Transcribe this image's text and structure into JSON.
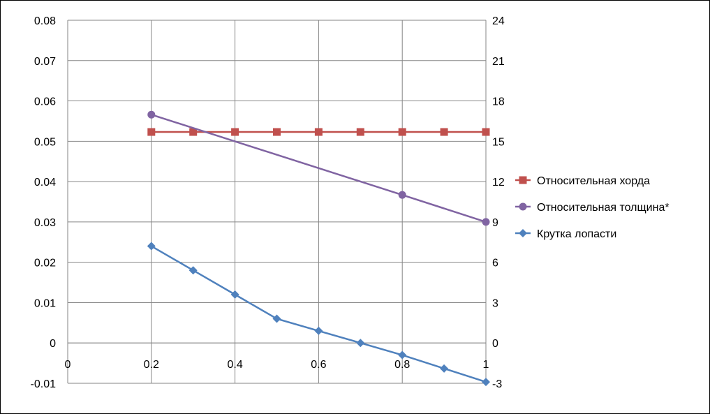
{
  "chart_data": {
    "type": "line",
    "x_ticks": [
      "0",
      "0.2",
      "0.4",
      "0.6",
      "0.8",
      "1"
    ],
    "y_left_ticks": [
      "0.08",
      "0.07",
      "0.06",
      "0.05",
      "0.04",
      "0.03",
      "0.02",
      "0.01",
      "0",
      "-0.01"
    ],
    "y_right_ticks": [
      "24",
      "21",
      "18",
      "15",
      "12",
      "9",
      "6",
      "3",
      "0",
      "-3"
    ],
    "xlim": [
      0,
      1
    ],
    "ylim_left": [
      -0.01,
      0.08
    ],
    "ylim_right": [
      -3,
      24
    ],
    "grid": true,
    "legend_position": "right",
    "series": [
      {
        "name": "Относительная хорда",
        "axis": "left",
        "color": "#C0504D",
        "marker": "square",
        "x": [
          0.2,
          0.3,
          0.4,
          0.5,
          0.6,
          0.7,
          0.8,
          0.9,
          1.0
        ],
        "y": [
          0.0523,
          0.0523,
          0.0523,
          0.0523,
          0.0523,
          0.0523,
          0.0523,
          0.0523,
          0.0523
        ]
      },
      {
        "name": "Относительная толщина*",
        "axis": "left",
        "color": "#8064A2",
        "marker": "circle",
        "x": [
          0.2,
          0.8,
          1.0
        ],
        "y": [
          0.0566,
          0.0367,
          0.03
        ]
      },
      {
        "name": "Крутка лопасти",
        "axis": "right",
        "color": "#4F81BD",
        "marker": "diamond",
        "x": [
          0.2,
          0.3,
          0.4,
          0.5,
          0.6,
          0.7,
          0.8,
          0.9,
          1.0
        ],
        "y": [
          7.2,
          5.4,
          3.6,
          1.8,
          0.9,
          0.0,
          -0.9,
          -1.9,
          -2.9
        ]
      }
    ]
  }
}
